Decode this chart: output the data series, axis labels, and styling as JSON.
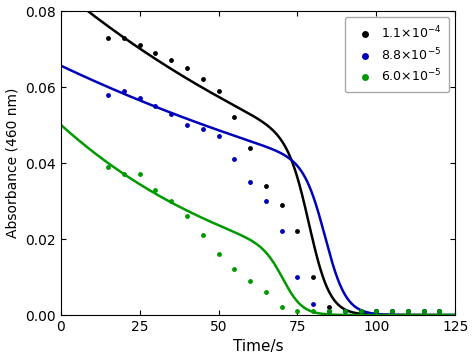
{
  "title": "",
  "xlabel": "Time/s",
  "ylabel": "Absorbance (460 nm)",
  "xlim": [
    0,
    125
  ],
  "ylim": [
    0,
    0.08
  ],
  "yticks": [
    0.0,
    0.02,
    0.04,
    0.06,
    0.08
  ],
  "xticks": [
    0,
    25,
    50,
    75,
    100,
    125
  ],
  "colors": [
    "black",
    "#0000bb",
    "#009900"
  ],
  "series": [
    {
      "color": "black",
      "dots_x": [
        15,
        20,
        25,
        30,
        35,
        40,
        45,
        50,
        55,
        60,
        65,
        70,
        75,
        80,
        85,
        90,
        95,
        100,
        105,
        110,
        115,
        120
      ],
      "dots_y": [
        0.073,
        0.073,
        0.071,
        0.069,
        0.067,
        0.065,
        0.062,
        0.059,
        0.052,
        0.044,
        0.034,
        0.029,
        0.022,
        0.01,
        0.002,
        0.001,
        0.001,
        0.001,
        0.001,
        0.001,
        0.001,
        0.001
      ],
      "curve_params": {
        "A": 0.079,
        "k1": 0.18,
        "k2": 0.055,
        "t_peak": 12
      }
    },
    {
      "color": "#0000bb",
      "dots_x": [
        15,
        20,
        25,
        30,
        35,
        40,
        45,
        50,
        55,
        60,
        65,
        70,
        75,
        80,
        85,
        90,
        95,
        100,
        105,
        110,
        115,
        120
      ],
      "dots_y": [
        0.058,
        0.059,
        0.057,
        0.055,
        0.053,
        0.05,
        0.049,
        0.047,
        0.041,
        0.035,
        0.03,
        0.022,
        0.01,
        0.003,
        0.001,
        0.001,
        0.001,
        0.001,
        0.001,
        0.001,
        0.001,
        0.001
      ],
      "curve_params": {
        "A": 0.062,
        "k1": 0.18,
        "k2": 0.043,
        "t_peak": 12
      }
    },
    {
      "color": "#009900",
      "dots_x": [
        15,
        20,
        25,
        30,
        35,
        40,
        45,
        50,
        55,
        60,
        65,
        70,
        75,
        80,
        85,
        90,
        95,
        100,
        105,
        110,
        115,
        120
      ],
      "dots_y": [
        0.039,
        0.037,
        0.037,
        0.033,
        0.03,
        0.026,
        0.021,
        0.016,
        0.012,
        0.009,
        0.006,
        0.002,
        0.001,
        0.001,
        0.001,
        0.001,
        0.001,
        0.001,
        0.001,
        0.001,
        0.001,
        0.001
      ],
      "curve_params": {
        "A": 0.041,
        "k1": 0.18,
        "k2": 0.06,
        "t_peak": 10
      }
    }
  ],
  "legend_labels": [
    "1.1×10$^{-4}$",
    "8.8×10$^{-5}$",
    "6.0×10$^{-5}$"
  ],
  "background_color": "white"
}
